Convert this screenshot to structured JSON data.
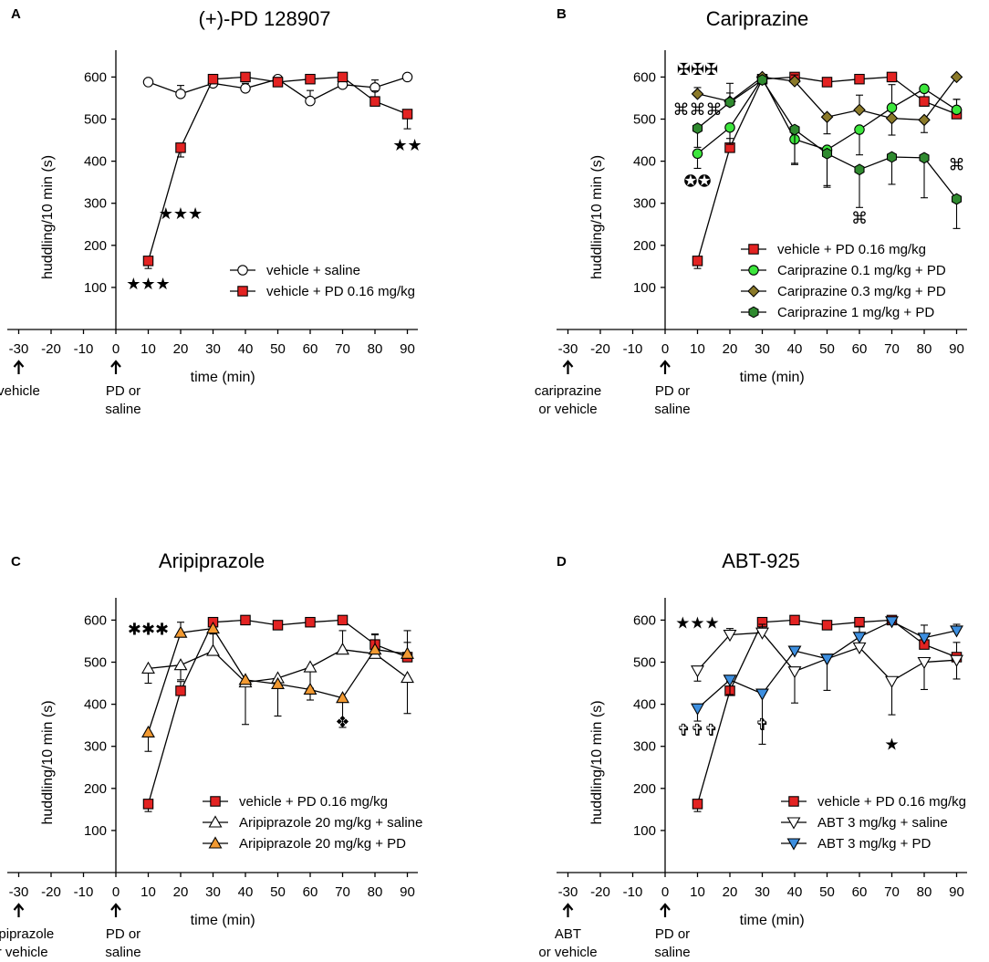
{
  "chart_data": [
    {
      "panel": "A",
      "type": "line",
      "title": "(+)-PD 128907",
      "xlabel": "time (min)",
      "ylabel": "huddling/10 min (s)",
      "ylim": [
        0,
        650
      ],
      "xlim": [
        -35,
        95
      ],
      "x_ticks": [
        -30,
        -20,
        -10,
        0,
        10,
        20,
        30,
        40,
        50,
        60,
        70,
        80,
        90
      ],
      "y_ticks": [
        100,
        200,
        300,
        400,
        500,
        600
      ],
      "pretreatment_label": "vehicle",
      "treatment_label_lines": [
        "PD or",
        "saline"
      ],
      "series": [
        {
          "name": "vehicle + saline",
          "marker": "circle",
          "color": "#ffffff",
          "x": [
            10,
            20,
            30,
            40,
            50,
            60,
            70,
            80,
            90
          ],
          "values": [
            588,
            560,
            585,
            573,
            595,
            543,
            582,
            575,
            600
          ],
          "err": [
            0,
            20,
            10,
            12,
            0,
            25,
            10,
            18,
            0
          ]
        },
        {
          "name": "vehicle + PD 0.16 mg/kg",
          "marker": "square",
          "color": "#e32322",
          "x": [
            10,
            20,
            30,
            40,
            50,
            60,
            70,
            80,
            90
          ],
          "values": [
            163,
            432,
            595,
            600,
            588,
            595,
            600,
            542,
            512
          ],
          "err": [
            18,
            22,
            8,
            0,
            10,
            0,
            0,
            25,
            35
          ]
        }
      ],
      "annotations": [
        {
          "text": "★★★",
          "x": 10,
          "y": 95
        },
        {
          "text": "★★★",
          "x": 20,
          "y": 263
        },
        {
          "text": "★★",
          "x": 90,
          "y": 425
        }
      ]
    },
    {
      "panel": "B",
      "type": "line",
      "title": "Cariprazine",
      "xlabel": "time (min)",
      "ylabel": "huddling/10 min (s)",
      "ylim": [
        0,
        650
      ],
      "xlim": [
        -35,
        95
      ],
      "x_ticks": [
        -30,
        -20,
        -10,
        0,
        10,
        20,
        30,
        40,
        50,
        60,
        70,
        80,
        90
      ],
      "y_ticks": [
        100,
        200,
        300,
        400,
        500,
        600
      ],
      "pretreatment_label_lines": [
        "cariprazine",
        "or vehicle"
      ],
      "treatment_label_lines": [
        "PD or",
        "saline"
      ],
      "series": [
        {
          "name": "vehicle + PD 0.16 mg/kg",
          "marker": "square",
          "color": "#e32322",
          "x": [
            10,
            20,
            30,
            40,
            50,
            60,
            70,
            80,
            90
          ],
          "values": [
            163,
            432,
            595,
            600,
            588,
            595,
            600,
            542,
            512
          ],
          "err": [
            18,
            22,
            8,
            0,
            10,
            0,
            0,
            25,
            35
          ]
        },
        {
          "name": "Cariprazine 0.1 mg/kg + PD",
          "marker": "circle",
          "color": "#3ce63c",
          "x": [
            10,
            20,
            30,
            40,
            50,
            60,
            70,
            80,
            90
          ],
          "values": [
            418,
            480,
            597,
            452,
            427,
            475,
            527,
            572,
            522
          ],
          "err": [
            35,
            40,
            0,
            60,
            85,
            60,
            55,
            0,
            25
          ]
        },
        {
          "name": "Cariprazine 0.3 mg/kg + PD",
          "marker": "diamond",
          "color": "#8b7a2a",
          "x": [
            10,
            20,
            30,
            40,
            50,
            60,
            70,
            80,
            90
          ],
          "values": [
            560,
            542,
            600,
            590,
            505,
            522,
            502,
            498,
            600
          ],
          "err": [
            15,
            20,
            0,
            15,
            40,
            35,
            40,
            30,
            0
          ]
        },
        {
          "name": "Cariprazine 1 mg/kg + PD",
          "marker": "hexagon",
          "color": "#2f8a2f",
          "x": [
            10,
            20,
            30,
            40,
            50,
            60,
            70,
            80,
            90
          ],
          "values": [
            478,
            540,
            593,
            475,
            418,
            380,
            410,
            408,
            310
          ],
          "err": [
            45,
            45,
            0,
            80,
            80,
            90,
            65,
            95,
            70
          ]
        }
      ],
      "annotations": [
        {
          "text": "✠✠✠",
          "x": 10,
          "y": 605
        },
        {
          "text": "⌘⌘⌘",
          "x": 10,
          "y": 510
        },
        {
          "text": "✪✪",
          "x": 10,
          "y": 340
        },
        {
          "text": "⌘",
          "x": 60,
          "y": 252
        },
        {
          "text": "⌘",
          "x": 90,
          "y": 378
        }
      ]
    },
    {
      "panel": "C",
      "type": "line",
      "title": "Aripiprazole",
      "xlabel": "time (min)",
      "ylabel": "huddling/10 min (s)",
      "ylim": [
        0,
        650
      ],
      "xlim": [
        -35,
        95
      ],
      "x_ticks": [
        -30,
        -20,
        -10,
        0,
        10,
        20,
        30,
        40,
        50,
        60,
        70,
        80,
        90
      ],
      "y_ticks": [
        100,
        200,
        300,
        400,
        500,
        600
      ],
      "pretreatment_label_lines": [
        "aripiprazole",
        "or vehicle"
      ],
      "treatment_label_lines": [
        "PD or",
        "saline"
      ],
      "series": [
        {
          "name": "vehicle + PD 0.16 mg/kg",
          "marker": "square",
          "color": "#e32322",
          "x": [
            10,
            20,
            30,
            40,
            50,
            60,
            70,
            80,
            90
          ],
          "values": [
            163,
            432,
            595,
            600,
            588,
            595,
            600,
            542,
            512
          ],
          "err": [
            18,
            22,
            8,
            0,
            10,
            0,
            0,
            25,
            35
          ]
        },
        {
          "name": "Aripiprazole 20 mg/kg + saline",
          "marker": "triangle-up",
          "color": "#ffffff",
          "x": [
            10,
            20,
            30,
            40,
            50,
            60,
            70,
            80,
            90
          ],
          "values": [
            485,
            493,
            527,
            452,
            462,
            488,
            530,
            520,
            463
          ],
          "err": [
            35,
            35,
            40,
            100,
            90,
            50,
            45,
            45,
            85
          ]
        },
        {
          "name": "Aripiprazole 20 mg/kg + PD",
          "marker": "triangle-up",
          "color": "#f29a32",
          "x": [
            10,
            20,
            30,
            40,
            50,
            60,
            70,
            80,
            90
          ],
          "values": [
            333,
            570,
            580,
            458,
            448,
            435,
            415,
            530,
            520
          ],
          "err": [
            45,
            25,
            0,
            0,
            0,
            25,
            70,
            0,
            55
          ]
        }
      ],
      "annotations": [
        {
          "text": "✱✱✱",
          "x": 10,
          "y": 565
        },
        {
          "text": "❖",
          "x": 70,
          "y": 345
        }
      ]
    },
    {
      "panel": "D",
      "type": "line",
      "title": "ABT-925",
      "xlabel": "time (min)",
      "ylabel": "huddling/10 min (s)",
      "ylim": [
        0,
        650
      ],
      "xlim": [
        -35,
        95
      ],
      "x_ticks": [
        -30,
        -20,
        -10,
        0,
        10,
        20,
        30,
        40,
        50,
        60,
        70,
        80,
        90
      ],
      "y_ticks": [
        100,
        200,
        300,
        400,
        500,
        600
      ],
      "pretreatment_label_lines": [
        "ABT",
        "or vehicle"
      ],
      "treatment_label_lines": [
        "PD or",
        "saline"
      ],
      "series": [
        {
          "name": "vehicle + PD 0.16 mg/kg",
          "marker": "square",
          "color": "#e32322",
          "x": [
            10,
            20,
            30,
            40,
            50,
            60,
            70,
            80,
            90
          ],
          "values": [
            163,
            432,
            595,
            600,
            588,
            595,
            600,
            542,
            512
          ],
          "err": [
            18,
            22,
            8,
            0,
            10,
            0,
            0,
            25,
            35
          ]
        },
        {
          "name": "ABT 3 mg/kg + saline",
          "marker": "triangle-down",
          "color": "#ffffff",
          "x": [
            10,
            20,
            30,
            40,
            50,
            60,
            70,
            80,
            90
          ],
          "values": [
            480,
            565,
            570,
            478,
            508,
            535,
            455,
            500,
            505
          ],
          "err": [
            25,
            15,
            20,
            75,
            75,
            50,
            80,
            65,
            45
          ]
        },
        {
          "name": "ABT 3 mg/kg + PD",
          "marker": "triangle-down",
          "color": "#3d8fe0",
          "x": [
            10,
            20,
            30,
            40,
            50,
            60,
            70,
            80,
            90
          ],
          "values": [
            390,
            458,
            425,
            527,
            508,
            560,
            597,
            558,
            575
          ],
          "err": [
            30,
            35,
            120,
            0,
            0,
            0,
            0,
            30,
            15
          ]
        }
      ],
      "annotations": [
        {
          "text": "★★★",
          "x": 10,
          "y": 580
        },
        {
          "text": "✞✞✞",
          "x": 10,
          "y": 325
        },
        {
          "text": "✞",
          "x": 30,
          "y": 338
        },
        {
          "text": "★",
          "x": 70,
          "y": 292
        }
      ]
    }
  ]
}
